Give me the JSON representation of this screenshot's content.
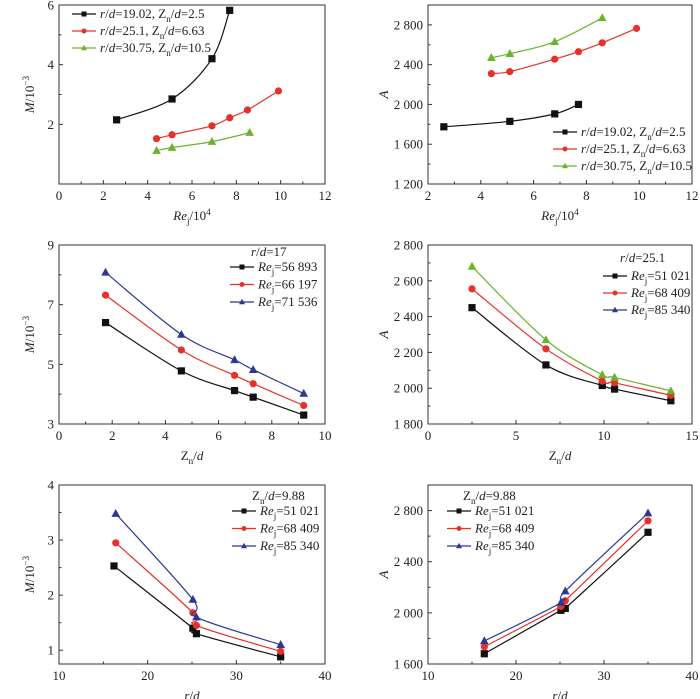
{
  "chart_data": [
    {
      "type": "line",
      "xlim": [
        0,
        12
      ],
      "ylim": [
        0,
        6
      ],
      "xticks": [
        0,
        2,
        4,
        6,
        8,
        10,
        12
      ],
      "xticklabels": [
        "0",
        "2",
        "4",
        "6",
        "8",
        "10",
        "12"
      ],
      "yticks": [
        2,
        4,
        6
      ],
      "yticklabels": [
        "2",
        "4",
        "6"
      ],
      "xlabel": [
        {
          "t": "Re",
          "i": 1
        },
        {
          "t": "j",
          "sub": 1
        },
        {
          "t": "/10"
        },
        {
          "t": "4",
          "sup": 1
        }
      ],
      "ylabel": [
        {
          "t": "M",
          "i": 1
        },
        {
          "t": "/10"
        },
        {
          "t": "−3",
          "sup": 1
        }
      ],
      "legend_title": [],
      "legend": "top-left",
      "series": [
        {
          "name": [
            {
              "t": "r",
              "i": 1
            },
            {
              "t": "/"
            },
            {
              "t": "d",
              "i": 1
            },
            {
              "t": "=19.02, Z"
            },
            {
              "t": "n",
              "sub": 1
            },
            {
              "t": "/"
            },
            {
              "t": "d",
              "i": 1
            },
            {
              "t": "=2.5"
            }
          ],
          "marker": "square",
          "color": "#111111",
          "x": [
            2.6,
            5.1,
            6.9,
            7.7
          ],
          "y": [
            2.15,
            2.85,
            4.2,
            5.82
          ]
        },
        {
          "name": [
            {
              "t": "r",
              "i": 1
            },
            {
              "t": "/"
            },
            {
              "t": "d",
              "i": 1
            },
            {
              "t": "=25.1, Z"
            },
            {
              "t": "n",
              "sub": 1
            },
            {
              "t": "/"
            },
            {
              "t": "d",
              "i": 1
            },
            {
              "t": "=6.63"
            }
          ],
          "marker": "circle",
          "color": "#e8302a",
          "x": [
            4.4,
            5.1,
            6.9,
            7.7,
            8.5,
            9.9
          ],
          "y": [
            1.52,
            1.65,
            1.95,
            2.22,
            2.48,
            3.12
          ]
        },
        {
          "name": [
            {
              "t": "r",
              "i": 1
            },
            {
              "t": "/"
            },
            {
              "t": "d",
              "i": 1
            },
            {
              "t": "=30.75, Z"
            },
            {
              "t": "n",
              "sub": 1
            },
            {
              "t": "/"
            },
            {
              "t": "d",
              "i": 1
            },
            {
              "t": "=10.5"
            }
          ],
          "marker": "triangle",
          "color": "#6ab42d",
          "x": [
            4.4,
            5.1,
            6.9,
            8.6
          ],
          "y": [
            1.12,
            1.22,
            1.42,
            1.72
          ]
        }
      ]
    },
    {
      "type": "line",
      "xlim": [
        2,
        12
      ],
      "ylim": [
        1200,
        3000
      ],
      "xticks": [
        2,
        4,
        6,
        8,
        10,
        12
      ],
      "xticklabels": [
        "2",
        "4",
        "6",
        "8",
        "10",
        "12"
      ],
      "yticks": [
        1200,
        1600,
        2000,
        2400,
        2800
      ],
      "yticklabels": [
        "1 200",
        "1 600",
        "2 000",
        "2 400",
        "2 800"
      ],
      "xlabel": [
        {
          "t": "Re",
          "i": 1
        },
        {
          "t": "j",
          "sub": 1
        },
        {
          "t": "/10"
        },
        {
          "t": "4",
          "sup": 1
        }
      ],
      "ylabel": [
        {
          "t": "A",
          "i": 1
        }
      ],
      "legend_title": [],
      "legend": "bottom-right",
      "series": [
        {
          "name": [
            {
              "t": "r",
              "i": 1
            },
            {
              "t": "/"
            },
            {
              "t": "d",
              "i": 1
            },
            {
              "t": "=19.02, Z"
            },
            {
              "t": "n",
              "sub": 1
            },
            {
              "t": "/"
            },
            {
              "t": "d",
              "i": 1
            },
            {
              "t": "=2.5"
            }
          ],
          "marker": "square",
          "color": "#111111",
          "x": [
            2.6,
            5.1,
            6.8,
            7.7
          ],
          "y": [
            1775,
            1830,
            1905,
            2000
          ]
        },
        {
          "name": [
            {
              "t": "r",
              "i": 1
            },
            {
              "t": "/"
            },
            {
              "t": "d",
              "i": 1
            },
            {
              "t": "=25.1, Z"
            },
            {
              "t": "n",
              "sub": 1
            },
            {
              "t": "/"
            },
            {
              "t": "d",
              "i": 1
            },
            {
              "t": "=6.63"
            }
          ],
          "marker": "circle",
          "color": "#e8302a",
          "x": [
            4.4,
            5.1,
            6.8,
            7.7,
            8.6,
            9.9
          ],
          "y": [
            2310,
            2330,
            2455,
            2530,
            2620,
            2765
          ]
        },
        {
          "name": [
            {
              "t": "r",
              "i": 1
            },
            {
              "t": "/"
            },
            {
              "t": "d",
              "i": 1
            },
            {
              "t": "=30.75, Z"
            },
            {
              "t": "n",
              "sub": 1
            },
            {
              "t": "/"
            },
            {
              "t": "d",
              "i": 1
            },
            {
              "t": "=10.5"
            }
          ],
          "marker": "triangle",
          "color": "#6ab42d",
          "x": [
            4.4,
            5.1,
            6.8,
            8.6
          ],
          "y": [
            2470,
            2510,
            2630,
            2870
          ]
        }
      ]
    },
    {
      "type": "line",
      "xlim": [
        0,
        10
      ],
      "ylim": [
        3,
        9
      ],
      "xticks": [
        0,
        2,
        4,
        6,
        8,
        10
      ],
      "xticklabels": [
        "0",
        "2",
        "4",
        "6",
        "8",
        "10"
      ],
      "yticks": [
        3,
        5,
        7,
        9
      ],
      "yticklabels": [
        "3",
        "5",
        "7",
        "9"
      ],
      "xlabel": [
        {
          "t": "Z"
        },
        {
          "t": "n",
          "sub": 1
        },
        {
          "t": "/"
        },
        {
          "t": "d",
          "i": 1
        }
      ],
      "ylabel": [
        {
          "t": "M",
          "i": 1
        },
        {
          "t": "/10"
        },
        {
          "t": "−3",
          "sup": 1
        }
      ],
      "legend_title": [
        {
          "t": "r",
          "i": 1
        },
        {
          "t": "/"
        },
        {
          "t": "d",
          "i": 1
        },
        {
          "t": "=17"
        }
      ],
      "legend": "top-right",
      "series": [
        {
          "name": [
            {
              "t": "Re",
              "i": 1
            },
            {
              "t": "j",
              "sub": 1
            },
            {
              "t": "=56 893"
            }
          ],
          "marker": "square",
          "color": "#111111",
          "x": [
            1.75,
            4.6,
            6.6,
            7.3,
            9.2
          ],
          "y": [
            6.4,
            4.78,
            4.12,
            3.9,
            3.3
          ]
        },
        {
          "name": [
            {
              "t": "Re",
              "i": 1
            },
            {
              "t": "j",
              "sub": 1
            },
            {
              "t": "=66 197"
            }
          ],
          "marker": "circle",
          "color": "#e8302a",
          "x": [
            1.75,
            4.6,
            6.6,
            7.3,
            9.2
          ],
          "y": [
            7.32,
            5.48,
            4.63,
            4.35,
            3.62
          ]
        },
        {
          "name": [
            {
              "t": "Re",
              "i": 1
            },
            {
              "t": "j",
              "sub": 1
            },
            {
              "t": "=71 536"
            }
          ],
          "marker": "triangle",
          "color": "#2b3990",
          "x": [
            1.75,
            4.6,
            6.6,
            7.3,
            9.2
          ],
          "y": [
            8.08,
            6.0,
            5.15,
            4.82,
            4.02
          ]
        }
      ]
    },
    {
      "type": "line",
      "xlim": [
        0,
        15
      ],
      "ylim": [
        1800,
        2800
      ],
      "xticks": [
        0,
        5,
        10,
        15
      ],
      "xticklabels": [
        "0",
        "5",
        "10",
        "15"
      ],
      "yticks": [
        1800,
        2000,
        2200,
        2400,
        2600,
        2800
      ],
      "yticklabels": [
        "1 800",
        "2 000",
        "2 200",
        "2 400",
        "2 600",
        "2 800"
      ],
      "xlabel": [
        {
          "t": "Z"
        },
        {
          "t": "n",
          "sub": 1
        },
        {
          "t": "/"
        },
        {
          "t": "d",
          "i": 1
        }
      ],
      "ylabel": [
        {
          "t": "A",
          "i": 1
        }
      ],
      "legend_title": [
        {
          "t": "r",
          "i": 1
        },
        {
          "t": "/"
        },
        {
          "t": "d",
          "i": 1
        },
        {
          "t": "=25.1"
        }
      ],
      "legend": "top-right",
      "series": [
        {
          "name": [
            {
              "t": "Re",
              "i": 1
            },
            {
              "t": "j",
              "sub": 1
            },
            {
              "t": "=51 021"
            }
          ],
          "marker": "square",
          "color": "#111111",
          "x": [
            2.5,
            6.7,
            9.9,
            10.6,
            13.8
          ],
          "y": [
            2450,
            2130,
            2015,
            1995,
            1930
          ]
        },
        {
          "name": [
            {
              "t": "Re",
              "i": 1
            },
            {
              "t": "j",
              "sub": 1
            },
            {
              "t": "=68 409"
            }
          ],
          "marker": "circle",
          "color": "#e8302a",
          "x": [
            2.5,
            6.7,
            9.9,
            10.6,
            13.8
          ],
          "y": [
            2555,
            2220,
            2040,
            2030,
            1960
          ]
        },
        {
          "name": [
            {
              "t": "Re",
              "i": 1
            },
            {
              "t": "j",
              "sub": 1
            },
            {
              "t": "=85 340"
            }
          ],
          "marker": "triangle",
          "color": "#6ab42d",
          "legend_color": "#2b3990",
          "x": [
            2.5,
            6.7,
            9.9,
            10.6,
            13.8
          ],
          "y": [
            2680,
            2270,
            2075,
            2060,
            1985
          ]
        }
      ]
    },
    {
      "type": "line",
      "xlim": [
        10,
        40
      ],
      "ylim": [
        0.75,
        4
      ],
      "xticks": [
        10,
        20,
        30,
        40
      ],
      "xticklabels": [
        "10",
        "20",
        "30",
        "40"
      ],
      "yticks": [
        1,
        2,
        3,
        4
      ],
      "yticklabels": [
        "1",
        "2",
        "3",
        "4"
      ],
      "xlabel": [
        {
          "t": "r",
          "i": 1
        },
        {
          "t": "/"
        },
        {
          "t": "d",
          "i": 1
        }
      ],
      "ylabel": [
        {
          "t": "M",
          "i": 1
        },
        {
          "t": "/10"
        },
        {
          "t": "−3",
          "sup": 1
        }
      ],
      "legend_title": [
        {
          "t": "Z"
        },
        {
          "t": "n",
          "sub": 1
        },
        {
          "t": "/"
        },
        {
          "t": "d",
          "i": 1
        },
        {
          "t": "=9.88"
        }
      ],
      "legend": "top-right",
      "series": [
        {
          "name": [
            {
              "t": "Re",
              "i": 1
            },
            {
              "t": "j",
              "sub": 1
            },
            {
              "t": "=51 021"
            }
          ],
          "marker": "square",
          "color": "#111111",
          "x": [
            16.2,
            25.1,
            25.5,
            35
          ],
          "y": [
            2.53,
            1.4,
            1.3,
            0.88
          ]
        },
        {
          "name": [
            {
              "t": "Re",
              "i": 1
            },
            {
              "t": "j",
              "sub": 1
            },
            {
              "t": "=68 409"
            }
          ],
          "marker": "circle",
          "color": "#e8302a",
          "x": [
            16.4,
            25.1,
            25.5,
            35
          ],
          "y": [
            2.95,
            1.68,
            1.45,
            0.98
          ]
        },
        {
          "name": [
            {
              "t": "Re",
              "i": 1
            },
            {
              "t": "j",
              "sub": 1
            },
            {
              "t": "=85 340"
            }
          ],
          "marker": "triangle",
          "color": "#2b3990",
          "x": [
            16.4,
            25.1,
            25.5,
            35
          ],
          "y": [
            3.48,
            1.92,
            1.6,
            1.1
          ]
        }
      ]
    },
    {
      "type": "line",
      "xlim": [
        10,
        40
      ],
      "ylim": [
        1600,
        3000
      ],
      "xticks": [
        10,
        20,
        30,
        40
      ],
      "xticklabels": [
        "10",
        "20",
        "30",
        "40"
      ],
      "yticks": [
        1600,
        2000,
        2400,
        2800
      ],
      "yticklabels": [
        "1 600",
        "2 000",
        "2 400",
        "2 800"
      ],
      "xlabel": [
        {
          "t": "r",
          "i": 1
        },
        {
          "t": "/"
        },
        {
          "t": "d",
          "i": 1
        }
      ],
      "ylabel": [
        {
          "t": "A",
          "i": 1
        }
      ],
      "legend_title": [
        {
          "t": "Z"
        },
        {
          "t": "n",
          "sub": 1
        },
        {
          "t": "/"
        },
        {
          "t": "d",
          "i": 1
        },
        {
          "t": "=9.88"
        }
      ],
      "legend": "top-left",
      "series": [
        {
          "name": [
            {
              "t": "Re",
              "i": 1
            },
            {
              "t": "j",
              "sub": 1
            },
            {
              "t": "=51 021"
            }
          ],
          "marker": "square",
          "color": "#111111",
          "x": [
            16.4,
            25.1,
            25.6,
            35
          ],
          "y": [
            1680,
            2020,
            2035,
            2630
          ]
        },
        {
          "name": [
            {
              "t": "Re",
              "i": 1
            },
            {
              "t": "j",
              "sub": 1
            },
            {
              "t": "=68 409"
            }
          ],
          "marker": "circle",
          "color": "#e8302a",
          "x": [
            16.4,
            25.1,
            25.6,
            35
          ],
          "y": [
            1735,
            2050,
            2095,
            2720
          ]
        },
        {
          "name": [
            {
              "t": "Re",
              "i": 1
            },
            {
              "t": "j",
              "sub": 1
            },
            {
              "t": "=85 340"
            }
          ],
          "marker": "triangle",
          "color": "#2b3990",
          "x": [
            16.4,
            25.1,
            25.6,
            35
          ],
          "y": [
            1780,
            2080,
            2170,
            2780
          ]
        }
      ]
    }
  ]
}
